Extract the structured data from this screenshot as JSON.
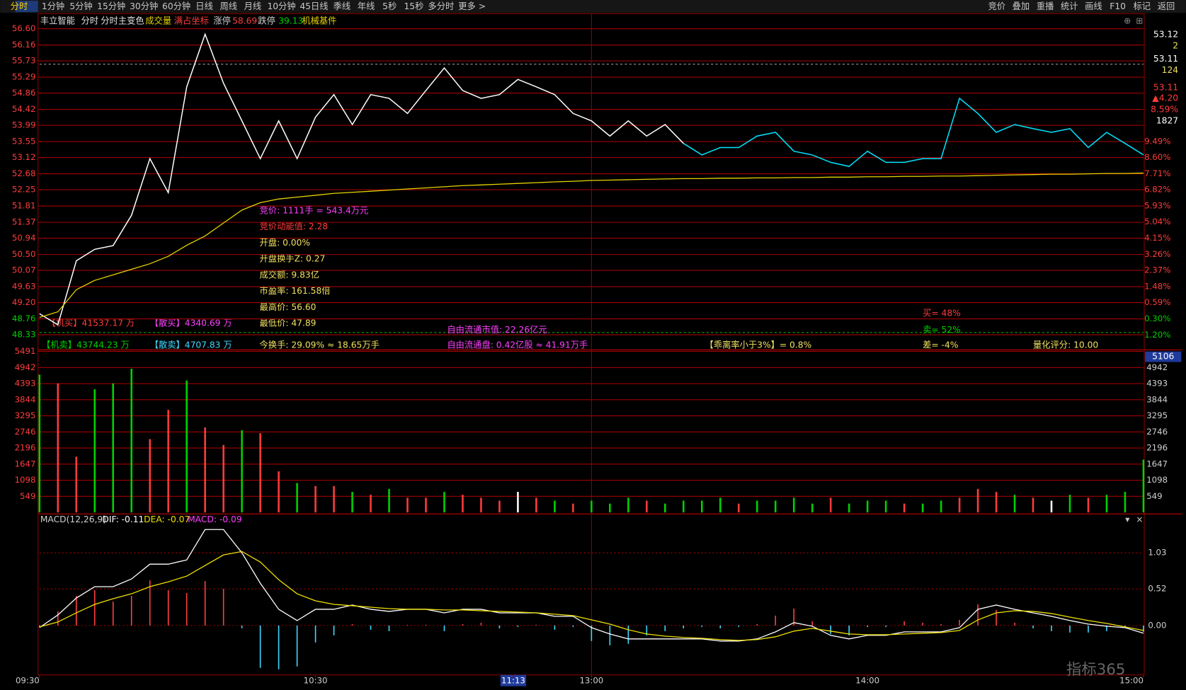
{
  "toolbar": {
    "left": [
      "分时",
      "1分钟",
      "5分钟",
      "15分钟",
      "30分钟",
      "60分钟",
      "日线",
      "周线",
      "月线",
      "10分钟",
      "45日线",
      "季线",
      "年线",
      "5秒",
      "15秒",
      "多分时",
      "更多 >"
    ],
    "right": [
      "竞价",
      "叠加",
      "重播",
      "统计",
      "画线",
      "F10",
      "标记",
      "返回"
    ]
  },
  "header": {
    "stock": "丰立智能",
    "mode": "分时",
    "color_mode": "分时主变色",
    "volume": "成交量",
    "coord": "满占坐标",
    "limit_up_label": "涨停",
    "limit_up": 58.69,
    "limit_down_label": "跌停",
    "limit_down": 39.13,
    "sector": "机械基件"
  },
  "flows": [
    "【机买】41537.17 万",
    "【散买】4340.69 万",
    "【机卖】43744.23 万",
    "【散卖】4707.83 万"
  ],
  "info": [
    "竞价: 1111手 = 543.4万元",
    "竞价动能值: 2.28",
    "开盘: 0.00%",
    "开盘换手Z: 0.27",
    "成交额: 9.83亿",
    "市盈率: 161.58倍",
    "最高价: 56.60",
    "最低价: 47.89",
    "今换手: 29.09% ≈ 18.65万手"
  ],
  "stats": [
    "自由流通市值: 22.26亿元",
    "自由流通盘: 0.42亿股 ≈ 41.91万手",
    "【乖离率小于3%】= 0.8%",
    "买= 48%",
    "卖= 52%",
    "差= -4%",
    "量化评分: 10.00"
  ],
  "order_panel": [
    "53.12",
    "2",
    "53.11",
    "124",
    "53.11",
    "▲4.20",
    "8.59%",
    "1827"
  ],
  "volume_cursor": 5106,
  "watermark": "指标365",
  "chart_data": [
    {
      "type": "line",
      "xlim": [
        0,
        240
      ],
      "x": [
        0,
        4,
        8,
        12,
        16,
        20,
        24,
        28,
        32,
        36,
        40,
        44,
        48,
        52,
        56,
        60,
        64,
        68,
        72,
        76,
        80,
        84,
        88,
        92,
        96,
        100,
        104,
        108,
        112,
        116,
        120,
        124,
        128,
        132,
        136,
        140,
        144,
        148,
        152,
        156,
        160,
        164,
        168,
        172,
        176,
        180,
        184,
        188,
        192,
        196,
        200,
        204,
        208,
        212,
        216,
        220,
        224,
        228,
        232,
        236,
        240
      ],
      "ylim": [
        48.33,
        56.6
      ],
      "yticks": [
        {
          "value": 56.6,
          "label": "56.60"
        },
        56.16,
        55.73,
        55.29,
        54.86,
        54.42,
        53.99,
        53.55,
        53.12,
        52.68,
        52.25,
        51.81,
        51.37,
        50.94,
        {
          "value": 50.5,
          "label": "50.50"
        },
        50.07,
        49.63,
        {
          "value": 49.2,
          "label": "49.20"
        },
        48.76,
        48.33
      ],
      "y2lim": [
        -1.19,
        15.72
      ],
      "y2ticks": [
        {
          "value": 9.49,
          "label": "9.49%"
        },
        {
          "value": 8.6,
          "label": "8.60%"
        },
        {
          "value": 7.71,
          "label": "7.71%"
        },
        {
          "value": 6.82,
          "label": "6.82%"
        },
        {
          "value": 5.93,
          "label": "5.93%"
        },
        {
          "value": 5.04,
          "label": "5.04%"
        },
        {
          "value": 4.15,
          "label": "4.15%"
        },
        {
          "value": 3.26,
          "label": "3.26%"
        },
        {
          "value": 2.37,
          "label": "2.37%"
        },
        {
          "value": 1.48,
          "label": "1.48%"
        },
        {
          "value": 0.59,
          "label": "0.59%"
        },
        {
          "value": -0.3,
          "label": "0.30%"
        },
        {
          "value": -1.2,
          "label": "1.20%"
        }
      ],
      "up_color": "#ff3c3c",
      "down_color": "#00d200",
      "grid": true,
      "series": [
        {
          "color": "#ffffff",
          "values": [
            48.9,
            48.6,
            50.33,
            50.64,
            50.74,
            51.56,
            53.09,
            52.17,
            55.03,
            56.45,
            55.13,
            54.11,
            53.09,
            54.11,
            53.09,
            54.21,
            54.82,
            54.01,
            54.82,
            54.72,
            54.31,
            54.93,
            55.54,
            54.93,
            54.72,
            54.82,
            55.23,
            55.03,
            54.82,
            54.31,
            54.11,
            53.7,
            54.11,
            53.7,
            54.01,
            53.5,
            null,
            null,
            null,
            null,
            null,
            null,
            null,
            null,
            null,
            null,
            null,
            null,
            null,
            null,
            null,
            null,
            null,
            null,
            null,
            null,
            null,
            null,
            null,
            null,
            null
          ]
        },
        {
          "color": "#00e5ff",
          "values": [
            null,
            null,
            null,
            null,
            null,
            null,
            null,
            null,
            null,
            null,
            null,
            null,
            null,
            null,
            null,
            null,
            null,
            null,
            null,
            null,
            null,
            null,
            null,
            null,
            null,
            null,
            null,
            null,
            null,
            null,
            null,
            null,
            null,
            null,
            null,
            53.5,
            53.19,
            53.39,
            53.39,
            53.7,
            53.8,
            53.29,
            53.19,
            52.99,
            52.88,
            53.29,
            52.99,
            52.99,
            53.09,
            53.09,
            54.72,
            54.31,
            53.8,
            54.01,
            53.9,
            53.8,
            53.9,
            53.39,
            53.8,
            53.5,
            53.19
          ]
        },
        {
          "color": "#e6d200",
          "values": [
            48.8,
            48.95,
            49.55,
            49.8,
            49.95,
            50.1,
            50.25,
            50.45,
            50.75,
            51.0,
            51.35,
            51.7,
            51.9,
            52.0,
            52.05,
            52.1,
            52.15,
            52.18,
            52.21,
            52.24,
            52.27,
            52.3,
            52.33,
            52.36,
            52.38,
            52.4,
            52.42,
            52.44,
            52.46,
            52.48,
            52.5,
            52.51,
            52.52,
            52.53,
            52.54,
            52.55,
            52.55,
            52.56,
            52.56,
            52.57,
            52.57,
            52.58,
            52.58,
            52.59,
            52.59,
            52.6,
            52.6,
            52.61,
            52.61,
            52.62,
            52.62,
            52.63,
            52.64,
            52.65,
            52.66,
            52.67,
            52.67,
            52.68,
            52.69,
            52.69,
            52.7
          ]
        }
      ]
    },
    {
      "type": "bar",
      "xlim": [
        0,
        240
      ],
      "x": [
        0,
        4,
        8,
        12,
        16,
        20,
        24,
        28,
        32,
        36,
        40,
        44,
        48,
        52,
        56,
        60,
        64,
        68,
        72,
        76,
        80,
        84,
        88,
        92,
        96,
        100,
        104,
        108,
        112,
        116,
        120,
        124,
        128,
        132,
        136,
        140,
        144,
        148,
        152,
        156,
        160,
        164,
        168,
        172,
        176,
        180,
        184,
        188,
        192,
        196,
        200,
        204,
        208,
        212,
        216,
        220,
        224,
        228,
        232,
        236,
        240
      ],
      "ylim": [
        0,
        5491
      ],
      "yticks": [
        5491,
        4942,
        4393,
        3844,
        3295,
        2746,
        2196,
        1647,
        1098,
        549
      ],
      "grid": true,
      "values": [
        4700,
        4400,
        1900,
        4200,
        4400,
        4900,
        2500,
        3500,
        4500,
        2900,
        2300,
        2800,
        2700,
        1400,
        1000,
        900,
        900,
        700,
        600,
        800,
        500,
        500,
        700,
        600,
        500,
        400,
        700,
        500,
        400,
        300,
        400,
        300,
        500,
        400,
        300,
        400,
        400,
        500,
        300,
        400,
        400,
        500,
        300,
        500,
        300,
        400,
        400,
        300,
        300,
        400,
        500,
        800,
        700,
        600,
        500,
        400,
        600,
        500,
        600,
        700,
        1800
      ],
      "colors": [
        "#00d200",
        "#ff3c3c",
        "#ff3c3c",
        "#00d200",
        "#00d200",
        "#00d200",
        "#ff3c3c",
        "#ff3c3c",
        "#00d200",
        "#ff3c3c",
        "#ff3c3c",
        "#00d200",
        "#ff3c3c",
        "#ff3c3c",
        "#00d200",
        "#ff3c3c",
        "#ff3c3c",
        "#00d200",
        "#ff3c3c",
        "#00d200",
        "#ff3c3c",
        "#ff3c3c",
        "#00d200",
        "#ff3c3c",
        "#ff3c3c",
        "#ff3c3c",
        "#ffffff",
        "#ff3c3c",
        "#00d200",
        "#ff3c3c",
        "#00d200",
        "#00d200",
        "#00d200",
        "#ff3c3c",
        "#00d200",
        "#00d200",
        "#00d200",
        "#00d200",
        "#ff3c3c",
        "#00d200",
        "#00d200",
        "#00d200",
        "#00d200",
        "#ff3c3c",
        "#00d200",
        "#00d200",
        "#00d200",
        "#ff3c3c",
        "#00d200",
        "#00d200",
        "#ff3c3c",
        "#ff3c3c",
        "#ff3c3c",
        "#00d200",
        "#ff3c3c",
        "#ffffff",
        "#00d200",
        "#ff3c3c",
        "#00d200",
        "#00d200",
        "#00d200"
      ]
    },
    {
      "type": "macd",
      "title": "MACD(12,26,9)",
      "xlim": [
        0,
        240
      ],
      "x": [
        0,
        4,
        8,
        12,
        16,
        20,
        24,
        28,
        32,
        36,
        40,
        44,
        48,
        52,
        56,
        60,
        64,
        68,
        72,
        76,
        80,
        84,
        88,
        92,
        96,
        100,
        104,
        108,
        112,
        116,
        120,
        124,
        128,
        132,
        136,
        140,
        144,
        148,
        152,
        156,
        160,
        164,
        168,
        172,
        176,
        180,
        184,
        188,
        192,
        196,
        200,
        204,
        208,
        212,
        216,
        220,
        224,
        228,
        232,
        236,
        240
      ],
      "xticks": [
        {
          "value": 0,
          "label": "09:30"
        },
        {
          "value": 60,
          "label": "10:30"
        },
        {
          "value": 103,
          "label": "11:13"
        },
        {
          "value": 120,
          "label": "13:00"
        },
        {
          "value": 180,
          "label": "14:00"
        },
        {
          "value": 240,
          "label": "15:00"
        }
      ],
      "ylim": [
        -0.7,
        1.55
      ],
      "yticks": [
        1.03,
        0.52,
        {
          "value": 0,
          "label": "0.00"
        }
      ],
      "up_color": "#ff4040",
      "down_color": "#40d8ff",
      "series": [
        {
          "name": "DIF: -0.11",
          "color": "#ffffff",
          "values": [
            -0.03,
            0.15,
            0.39,
            0.55,
            0.55,
            0.66,
            0.87,
            0.87,
            0.93,
            1.36,
            1.36,
            1.03,
            0.6,
            0.23,
            0.07,
            0.23,
            0.23,
            0.29,
            0.23,
            0.2,
            0.23,
            0.23,
            0.18,
            0.23,
            0.23,
            0.18,
            0.18,
            0.18,
            0.13,
            0.13,
            -0.03,
            -0.12,
            -0.19,
            -0.19,
            -0.19,
            -0.19,
            -0.19,
            -0.22,
            -0.22,
            -0.19,
            -0.09,
            0.04,
            -0.01,
            -0.14,
            -0.19,
            -0.14,
            -0.14,
            -0.09,
            -0.09,
            -0.09,
            -0.03,
            0.23,
            0.29,
            0.23,
            0.18,
            0.13,
            0.07,
            0.02,
            -0.01,
            -0.03,
            -0.11
          ]
        },
        {
          "name": "DEA: -0.07",
          "color": "#f0e000",
          "values": [
            -0.02,
            0.05,
            0.18,
            0.3,
            0.38,
            0.45,
            0.55,
            0.62,
            0.7,
            0.85,
            1.0,
            1.05,
            0.9,
            0.65,
            0.45,
            0.35,
            0.3,
            0.28,
            0.26,
            0.24,
            0.23,
            0.23,
            0.22,
            0.22,
            0.21,
            0.2,
            0.19,
            0.18,
            0.16,
            0.14,
            0.08,
            0.02,
            -0.06,
            -0.12,
            -0.15,
            -0.17,
            -0.18,
            -0.2,
            -0.21,
            -0.2,
            -0.16,
            -0.08,
            -0.04,
            -0.08,
            -0.12,
            -0.13,
            -0.13,
            -0.12,
            -0.11,
            -0.1,
            -0.07,
            0.08,
            0.18,
            0.21,
            0.2,
            0.17,
            0.12,
            0.07,
            0.03,
            -0.02,
            -0.07
          ]
        },
        {
          "name": "MACD: -0.09",
          "color": "#ff40ff",
          "values": [
            -0.02,
            0.2,
            0.42,
            0.5,
            0.34,
            0.42,
            0.64,
            0.5,
            0.46,
            0.63,
            0.52,
            -0.04,
            -0.6,
            -0.62,
            -0.58,
            -0.24,
            -0.14,
            0.02,
            -0.06,
            -0.08,
            0.01,
            0.01,
            -0.08,
            0.02,
            0.04,
            -0.04,
            -0.02,
            0.01,
            -0.06,
            -0.02,
            -0.22,
            -0.28,
            -0.26,
            -0.14,
            -0.08,
            -0.04,
            -0.02,
            -0.04,
            -0.02,
            0.02,
            0.14,
            0.24,
            0.06,
            -0.12,
            -0.14,
            -0.02,
            -0.02,
            0.06,
            0.04,
            0.02,
            0.08,
            0.3,
            0.22,
            0.04,
            -0.04,
            -0.08,
            -0.1,
            -0.1,
            -0.08,
            -0.02,
            -0.09
          ]
        }
      ]
    }
  ]
}
